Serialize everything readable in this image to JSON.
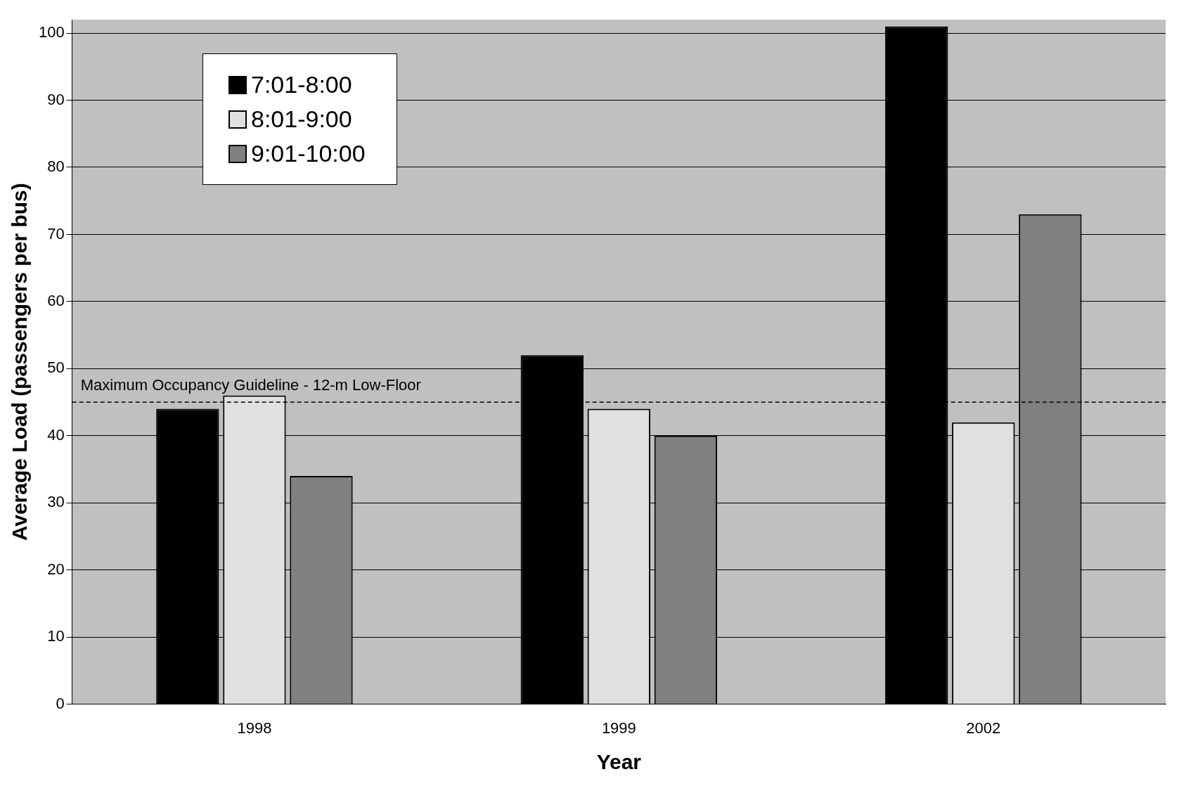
{
  "chart_data": {
    "type": "bar",
    "xlabel": "Year",
    "ylabel": "Average Load (passengers per bus)",
    "categories": [
      "1998",
      "1999",
      "2002"
    ],
    "series": [
      {
        "name": "7:01-8:00",
        "color": "#000000",
        "values": [
          44,
          52,
          101
        ]
      },
      {
        "name": "8:01-9:00",
        "color": "#e0e0e0",
        "values": [
          46,
          44,
          42
        ]
      },
      {
        "name": "9:01-10:00",
        "color": "#808080",
        "values": [
          34,
          40,
          73
        ]
      }
    ],
    "ylim": [
      0,
      102
    ],
    "yticks": [
      0,
      10,
      20,
      30,
      40,
      50,
      60,
      70,
      80,
      90,
      100
    ],
    "grid": "y",
    "legend": "top left",
    "ref_lines": [
      {
        "axis": "y",
        "value": 45,
        "label": "Maximum Occupancy Guideline - 12-m Low-Floor",
        "color": "#000000",
        "line_style": "dashed"
      }
    ]
  }
}
